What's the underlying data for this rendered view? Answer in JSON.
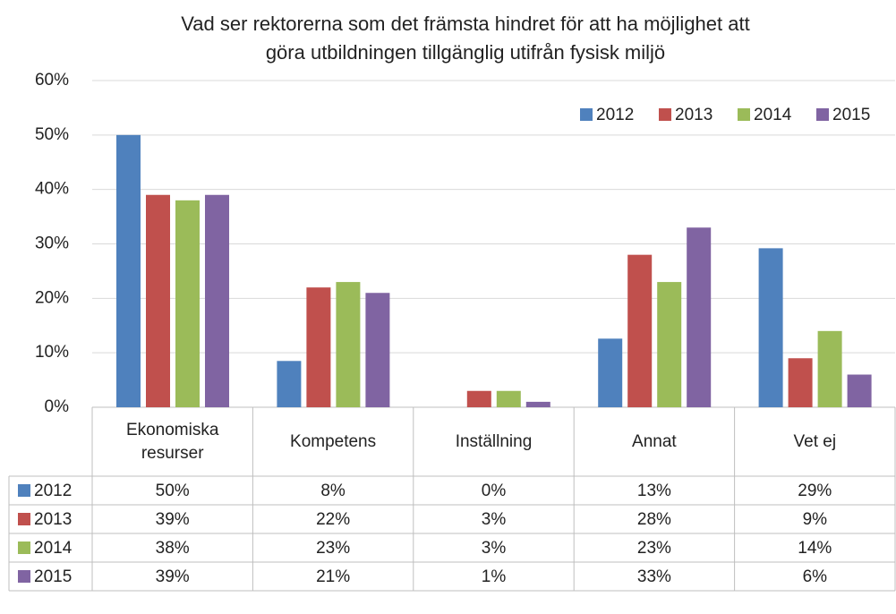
{
  "chart_data": {
    "type": "bar",
    "title": [
      "Vad ser rektorerna som det främsta hindret för att ha möjlighet att",
      "göra utbildningen tillgänglig utifrån fysisk miljö"
    ],
    "categories": [
      "Ekonomiska resurser",
      "Kompetens",
      "Inställning",
      "Annat",
      "Vet ej"
    ],
    "series": [
      {
        "name": "2012",
        "color": "#4f81bd",
        "values": [
          50,
          8.5,
          0,
          12.6,
          29.2
        ],
        "value_labels": [
          "50%",
          "8%",
          "0%",
          "13%",
          "29%"
        ]
      },
      {
        "name": "2013",
        "color": "#c0504d",
        "values": [
          39,
          22,
          3,
          28,
          9
        ],
        "value_labels": [
          "39%",
          "22%",
          "3%",
          "28%",
          "9%"
        ]
      },
      {
        "name": "2014",
        "color": "#9bbb59",
        "values": [
          38,
          23,
          3,
          23,
          14
        ],
        "value_labels": [
          "38%",
          "23%",
          "3%",
          "23%",
          "14%"
        ]
      },
      {
        "name": "2015",
        "color": "#8064a2",
        "values": [
          39,
          21,
          1,
          33,
          6
        ],
        "value_labels": [
          "39%",
          "21%",
          "1%",
          "33%",
          "6%"
        ]
      }
    ],
    "ylim": [
      0,
      60
    ],
    "yticks": [
      {
        "value": 0,
        "label": "0%"
      },
      {
        "value": 10,
        "label": "10%"
      },
      {
        "value": 20,
        "label": "20%"
      },
      {
        "value": 30,
        "label": "30%"
      },
      {
        "value": 40,
        "label": "40%"
      },
      {
        "value": 50,
        "label": "50%"
      },
      {
        "value": 60,
        "label": "60%"
      }
    ],
    "grid": true,
    "legend": "top-right"
  }
}
